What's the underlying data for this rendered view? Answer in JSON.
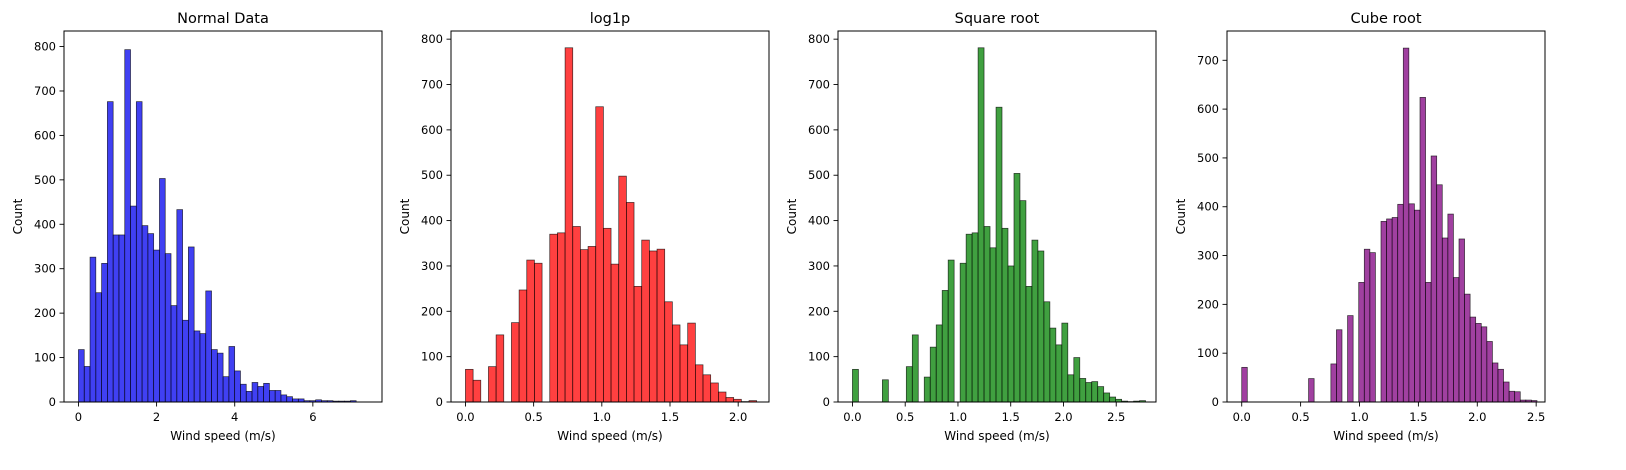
{
  "chart_data": [
    {
      "type": "bar",
      "title": "Normal Data",
      "xlabel": "Wind speed (m/s)",
      "ylabel": "Count",
      "color": "#0000ee",
      "xlim": [
        -0.37,
        7.77
      ],
      "ylim": [
        0,
        835
      ],
      "xticks": [
        0,
        2,
        4,
        6
      ],
      "yticks": [
        0,
        100,
        200,
        300,
        400,
        500,
        600,
        700,
        800
      ],
      "bin_start": 0,
      "bin_width": 0.1481,
      "values": [
        118,
        80,
        326,
        246,
        312,
        676,
        376,
        376,
        793,
        441,
        676,
        397,
        379,
        342,
        503,
        334,
        217,
        433,
        184,
        349,
        160,
        154,
        250,
        118,
        110,
        57,
        125,
        70,
        40,
        24,
        44,
        35,
        42,
        26,
        26,
        16,
        12,
        7,
        7,
        3,
        3,
        5,
        3,
        3,
        2,
        2,
        2,
        3,
        0,
        0,
        0
      ]
    },
    {
      "type": "bar",
      "title": "log1p",
      "xlabel": "Wind speed (m/s)",
      "ylabel": "Count",
      "color": "#ff0000",
      "xlim": [
        -0.106,
        2.226
      ],
      "ylim": [
        0,
        818
      ],
      "xticks": [
        0.0,
        0.5,
        1.0,
        1.5,
        2.0
      ],
      "yticks": [
        0,
        100,
        200,
        300,
        400,
        500,
        600,
        700,
        800
      ],
      "bin_start": 0,
      "bin_width": 0.0562,
      "values": [
        72,
        48,
        0,
        78,
        148,
        0,
        175,
        247,
        313,
        306,
        0,
        370,
        373,
        781,
        387,
        336,
        343,
        651,
        383,
        304,
        498,
        440,
        255,
        357,
        333,
        337,
        221,
        170,
        126,
        174,
        82,
        60,
        42,
        22,
        10,
        6,
        1,
        3
      ]
    },
    {
      "type": "bar",
      "title": "Square root",
      "xlabel": "Wind speed (m/s)",
      "ylabel": "Count",
      "color": "#008000",
      "xlim": [
        -0.137,
        2.877
      ],
      "ylim": [
        0,
        818
      ],
      "xticks": [
        0.0,
        0.5,
        1.0,
        1.5,
        2.0,
        2.5
      ],
      "yticks": [
        0,
        100,
        200,
        300,
        400,
        500,
        600,
        700,
        800
      ],
      "bin_start": 0,
      "bin_width": 0.0567,
      "values": [
        72,
        0,
        0,
        0,
        0,
        49,
        0,
        0,
        0,
        78,
        148,
        0,
        55,
        121,
        170,
        246,
        313,
        0,
        306,
        370,
        373,
        781,
        387,
        340,
        650,
        383,
        300,
        504,
        444,
        255,
        357,
        333,
        221,
        163,
        126,
        174,
        60,
        98,
        52,
        43,
        45,
        34,
        20,
        11,
        6,
        2,
        1,
        2,
        3
      ]
    },
    {
      "type": "bar",
      "title": "Cube root",
      "xlabel": "Wind speed (m/s)",
      "ylabel": "Count",
      "color": "#800080",
      "xlim": [
        -0.125,
        2.575
      ],
      "ylim": [
        0,
        760
      ],
      "xticks": [
        0.0,
        0.5,
        1.0,
        1.5,
        2.0,
        2.5
      ],
      "yticks": [
        0,
        100,
        200,
        300,
        400,
        500,
        600,
        700
      ],
      "bin_start": 0,
      "bin_width": 0.0473,
      "values": [
        71,
        0,
        0,
        0,
        0,
        0,
        0,
        0,
        0,
        0,
        0,
        0,
        48,
        0,
        0,
        0,
        78,
        148,
        0,
        177,
        0,
        245,
        313,
        306,
        0,
        370,
        375,
        378,
        405,
        725,
        406,
        393,
        624,
        245,
        504,
        445,
        336,
        385,
        255,
        334,
        221,
        174,
        161,
        154,
        124,
        80,
        67,
        41,
        22,
        21,
        4,
        4,
        3
      ]
    }
  ]
}
